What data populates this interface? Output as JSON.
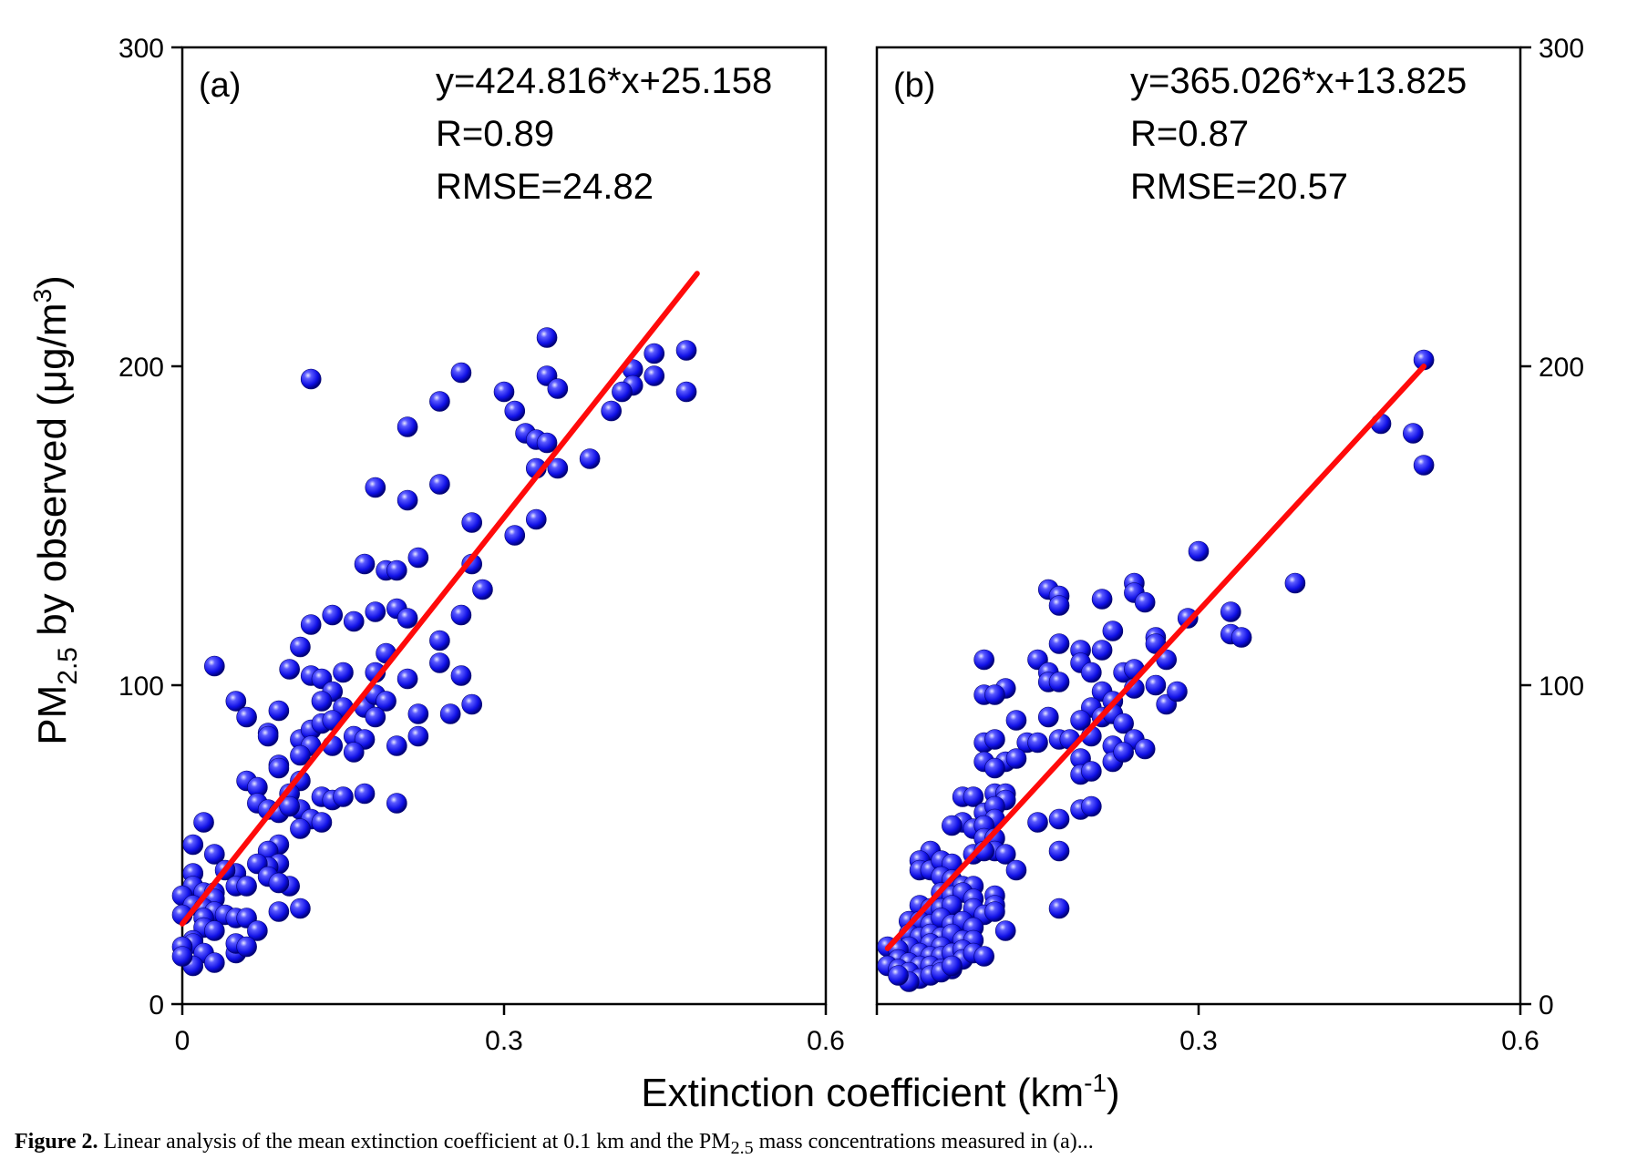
{
  "figure": {
    "ylabel_main": "PM",
    "ylabel_sub": "2.5",
    "ylabel_rest": " by observed (μg/m",
    "ylabel_sup": "3",
    "ylabel_end": ")",
    "xlabel_main": "Extinction coefficient (km",
    "xlabel_sup": "-1",
    "xlabel_end": ")",
    "caption_bold": "Figure 2.",
    "caption_text": " Linear analysis of the mean extinction coefficient at 0.1 km and the PM",
    "caption_sub": "2.5",
    "caption_rest": " mass concentrations measured in (a)..."
  },
  "chart_data": [
    {
      "type": "scatter",
      "panel_label": "(a)",
      "equation": "y=424.816*x+25.158",
      "r_text": "R=0.89",
      "rmse_text": "RMSE=24.82",
      "xlim": [
        0,
        0.6
      ],
      "ylim": [
        0,
        300
      ],
      "xticks": [
        0,
        0.3,
        0.6
      ],
      "xtick_labels": [
        "0",
        "0.3",
        "0.6"
      ],
      "yticks": [
        0,
        100,
        200,
        300
      ],
      "ytick_labels": [
        "0",
        "100",
        "200",
        "300"
      ],
      "y_axis_side": "left",
      "marker_color": "#1a1aff",
      "fit": {
        "slope": 424.816,
        "intercept": 25.158,
        "x_range": [
          0,
          0.48
        ],
        "color": "#ff0a0a"
      },
      "points": [
        [
          0.12,
          196
        ],
        [
          0.34,
          209
        ],
        [
          0.26,
          198
        ],
        [
          0.24,
          189
        ],
        [
          0.3,
          192
        ],
        [
          0.34,
          197
        ],
        [
          0.35,
          193
        ],
        [
          0.31,
          186
        ],
        [
          0.47,
          205
        ],
        [
          0.44,
          204
        ],
        [
          0.42,
          199
        ],
        [
          0.42,
          194
        ],
        [
          0.41,
          192
        ],
        [
          0.44,
          197
        ],
        [
          0.47,
          192
        ],
        [
          0.4,
          186
        ],
        [
          0.32,
          179
        ],
        [
          0.33,
          177
        ],
        [
          0.34,
          176
        ],
        [
          0.33,
          168
        ],
        [
          0.35,
          168
        ],
        [
          0.38,
          171
        ],
        [
          0.21,
          181
        ],
        [
          0.18,
          162
        ],
        [
          0.24,
          163
        ],
        [
          0.21,
          158
        ],
        [
          0.27,
          151
        ],
        [
          0.33,
          152
        ],
        [
          0.31,
          147
        ],
        [
          0.22,
          140
        ],
        [
          0.17,
          138
        ],
        [
          0.19,
          136
        ],
        [
          0.2,
          136
        ],
        [
          0.27,
          138
        ],
        [
          0.28,
          130
        ],
        [
          0.14,
          122
        ],
        [
          0.16,
          120
        ],
        [
          0.18,
          123
        ],
        [
          0.2,
          124
        ],
        [
          0.21,
          121
        ],
        [
          0.26,
          122
        ],
        [
          0.12,
          119
        ],
        [
          0.11,
          112
        ],
        [
          0.19,
          110
        ],
        [
          0.24,
          114
        ],
        [
          0.03,
          106
        ],
        [
          0.1,
          105
        ],
        [
          0.12,
          103
        ],
        [
          0.13,
          102
        ],
        [
          0.15,
          104
        ],
        [
          0.14,
          98
        ],
        [
          0.18,
          104
        ],
        [
          0.24,
          107
        ],
        [
          0.26,
          103
        ],
        [
          0.21,
          102
        ],
        [
          0.05,
          95
        ],
        [
          0.06,
          90
        ],
        [
          0.09,
          92
        ],
        [
          0.13,
          95
        ],
        [
          0.15,
          93
        ],
        [
          0.17,
          93
        ],
        [
          0.18,
          97
        ],
        [
          0.19,
          95
        ],
        [
          0.18,
          90
        ],
        [
          0.22,
          91
        ],
        [
          0.25,
          91
        ],
        [
          0.27,
          94
        ],
        [
          0.08,
          85
        ],
        [
          0.11,
          83
        ],
        [
          0.12,
          86
        ],
        [
          0.13,
          88
        ],
        [
          0.14,
          89
        ],
        [
          0.16,
          84
        ],
        [
          0.17,
          83
        ],
        [
          0.2,
          81
        ],
        [
          0.22,
          84
        ],
        [
          0.08,
          84
        ],
        [
          0.12,
          81
        ],
        [
          0.14,
          81
        ],
        [
          0.16,
          79
        ],
        [
          0.11,
          78
        ],
        [
          0.09,
          75
        ],
        [
          0.09,
          74
        ],
        [
          0.06,
          70
        ],
        [
          0.07,
          68
        ],
        [
          0.11,
          70
        ],
        [
          0.1,
          66
        ],
        [
          0.13,
          65
        ],
        [
          0.14,
          64
        ],
        [
          0.15,
          65
        ],
        [
          0.17,
          66
        ],
        [
          0.2,
          63
        ],
        [
          0.07,
          63
        ],
        [
          0.08,
          61
        ],
        [
          0.09,
          60
        ],
        [
          0.11,
          61
        ],
        [
          0.12,
          58
        ],
        [
          0.13,
          57
        ],
        [
          0.11,
          55
        ],
        [
          0.1,
          62
        ],
        [
          0.02,
          57
        ],
        [
          0.01,
          50
        ],
        [
          0.03,
          47
        ],
        [
          0.09,
          50
        ],
        [
          0.08,
          48
        ],
        [
          0.09,
          44
        ],
        [
          0.08,
          43
        ],
        [
          0.07,
          44
        ],
        [
          0.08,
          40
        ],
        [
          0.1,
          37
        ],
        [
          0.09,
          38
        ],
        [
          0.05,
          41
        ],
        [
          0.04,
          42
        ],
        [
          0.05,
          37
        ],
        [
          0.06,
          37
        ],
        [
          0.01,
          41
        ],
        [
          0.01,
          37
        ],
        [
          0.02,
          35
        ],
        [
          0.0,
          34
        ],
        [
          0.03,
          35
        ],
        [
          0.03,
          33
        ],
        [
          0.01,
          31
        ],
        [
          0.02,
          30
        ],
        [
          0.0,
          28
        ],
        [
          0.03,
          29
        ],
        [
          0.02,
          27
        ],
        [
          0.04,
          28
        ],
        [
          0.05,
          27
        ],
        [
          0.06,
          27
        ],
        [
          0.07,
          23
        ],
        [
          0.09,
          29
        ],
        [
          0.11,
          30
        ],
        [
          0.02,
          24
        ],
        [
          0.03,
          23
        ],
        [
          0.01,
          20
        ],
        [
          0.01,
          19
        ],
        [
          0.0,
          18
        ],
        [
          0.02,
          16
        ],
        [
          0.05,
          16
        ],
        [
          0.05,
          19
        ],
        [
          0.06,
          18
        ],
        [
          0.03,
          13
        ],
        [
          0.01,
          12
        ],
        [
          0.0,
          15
        ]
      ]
    },
    {
      "type": "scatter",
      "panel_label": "(b)",
      "equation": "y=365.026*x+13.825",
      "r_text": "R=0.87",
      "rmse_text": "RMSE=20.57",
      "xlim": [
        0,
        0.6
      ],
      "ylim": [
        0,
        300
      ],
      "xticks": [
        0,
        0.3,
        0.6
      ],
      "xtick_labels": [
        "",
        "0.3",
        "0.6"
      ],
      "yticks": [
        0,
        100,
        200,
        300
      ],
      "ytick_labels": [
        "0",
        "100",
        "200",
        "300"
      ],
      "y_axis_side": "right",
      "marker_color": "#1a1aff",
      "fit": {
        "slope": 365.026,
        "intercept": 13.825,
        "x_range": [
          0.01,
          0.51
        ],
        "color": "#ff0a0a"
      },
      "points": [
        [
          0.51,
          202
        ],
        [
          0.47,
          182
        ],
        [
          0.5,
          179
        ],
        [
          0.51,
          169
        ],
        [
          0.3,
          142
        ],
        [
          0.39,
          132
        ],
        [
          0.29,
          121
        ],
        [
          0.33,
          123
        ],
        [
          0.33,
          116
        ],
        [
          0.34,
          115
        ],
        [
          0.16,
          130
        ],
        [
          0.17,
          128
        ],
        [
          0.17,
          125
        ],
        [
          0.21,
          127
        ],
        [
          0.24,
          132
        ],
        [
          0.24,
          129
        ],
        [
          0.25,
          126
        ],
        [
          0.26,
          115
        ],
        [
          0.22,
          117
        ],
        [
          0.26,
          113
        ],
        [
          0.17,
          113
        ],
        [
          0.19,
          111
        ],
        [
          0.21,
          111
        ],
        [
          0.15,
          108
        ],
        [
          0.1,
          108
        ],
        [
          0.19,
          107
        ],
        [
          0.27,
          108
        ],
        [
          0.2,
          104
        ],
        [
          0.23,
          104
        ],
        [
          0.24,
          105
        ],
        [
          0.16,
          104
        ],
        [
          0.16,
          101
        ],
        [
          0.17,
          101
        ],
        [
          0.12,
          99
        ],
        [
          0.1,
          97
        ],
        [
          0.11,
          97
        ],
        [
          0.21,
          98
        ],
        [
          0.24,
          99
        ],
        [
          0.26,
          100
        ],
        [
          0.27,
          94
        ],
        [
          0.28,
          98
        ],
        [
          0.22,
          95
        ],
        [
          0.2,
          93
        ],
        [
          0.21,
          90
        ],
        [
          0.13,
          89
        ],
        [
          0.16,
          90
        ],
        [
          0.19,
          89
        ],
        [
          0.22,
          91
        ],
        [
          0.23,
          88
        ],
        [
          0.1,
          82
        ],
        [
          0.11,
          83
        ],
        [
          0.14,
          82
        ],
        [
          0.15,
          82
        ],
        [
          0.17,
          83
        ],
        [
          0.18,
          83
        ],
        [
          0.2,
          84
        ],
        [
          0.22,
          81
        ],
        [
          0.24,
          83
        ],
        [
          0.25,
          80
        ],
        [
          0.19,
          77
        ],
        [
          0.22,
          76
        ],
        [
          0.23,
          79
        ],
        [
          0.12,
          76
        ],
        [
          0.13,
          77
        ],
        [
          0.1,
          76
        ],
        [
          0.11,
          74
        ],
        [
          0.19,
          72
        ],
        [
          0.2,
          73
        ],
        [
          0.11,
          66
        ],
        [
          0.12,
          66
        ],
        [
          0.08,
          65
        ],
        [
          0.09,
          65
        ],
        [
          0.12,
          64
        ],
        [
          0.1,
          60
        ],
        [
          0.11,
          62
        ],
        [
          0.11,
          58
        ],
        [
          0.15,
          57
        ],
        [
          0.17,
          58
        ],
        [
          0.19,
          61
        ],
        [
          0.2,
          62
        ],
        [
          0.08,
          57
        ],
        [
          0.07,
          56
        ],
        [
          0.09,
          55
        ],
        [
          0.1,
          56
        ],
        [
          0.1,
          52
        ],
        [
          0.11,
          52
        ],
        [
          0.11,
          48
        ],
        [
          0.12,
          47
        ],
        [
          0.05,
          48
        ],
        [
          0.04,
          45
        ],
        [
          0.04,
          42
        ],
        [
          0.05,
          42
        ],
        [
          0.06,
          45
        ],
        [
          0.07,
          44
        ],
        [
          0.09,
          47
        ],
        [
          0.1,
          48
        ],
        [
          0.13,
          42
        ],
        [
          0.17,
          48
        ],
        [
          0.06,
          40
        ],
        [
          0.07,
          39
        ],
        [
          0.08,
          37
        ],
        [
          0.09,
          37
        ],
        [
          0.06,
          35
        ],
        [
          0.07,
          34
        ],
        [
          0.08,
          35
        ],
        [
          0.09,
          33
        ],
        [
          0.11,
          34
        ],
        [
          0.11,
          31
        ],
        [
          0.04,
          31
        ],
        [
          0.05,
          30
        ],
        [
          0.06,
          30
        ],
        [
          0.07,
          31
        ],
        [
          0.09,
          30
        ],
        [
          0.1,
          28
        ],
        [
          0.11,
          29
        ],
        [
          0.12,
          23
        ],
        [
          0.03,
          26
        ],
        [
          0.04,
          26
        ],
        [
          0.05,
          25
        ],
        [
          0.06,
          27
        ],
        [
          0.07,
          25
        ],
        [
          0.08,
          26
        ],
        [
          0.09,
          24
        ],
        [
          0.17,
          30
        ],
        [
          0.03,
          22
        ],
        [
          0.04,
          21
        ],
        [
          0.05,
          22
        ],
        [
          0.06,
          21
        ],
        [
          0.07,
          22
        ],
        [
          0.08,
          20
        ],
        [
          0.09,
          20
        ],
        [
          0.05,
          19
        ],
        [
          0.06,
          18
        ],
        [
          0.03,
          18
        ],
        [
          0.01,
          18
        ],
        [
          0.02,
          17
        ],
        [
          0.04,
          16
        ],
        [
          0.05,
          15
        ],
        [
          0.06,
          15
        ],
        [
          0.07,
          16
        ],
        [
          0.08,
          17
        ],
        [
          0.02,
          14
        ],
        [
          0.03,
          13
        ],
        [
          0.04,
          12
        ],
        [
          0.05,
          12
        ],
        [
          0.06,
          11
        ],
        [
          0.07,
          11
        ],
        [
          0.08,
          14
        ],
        [
          0.09,
          16
        ],
        [
          0.1,
          15
        ],
        [
          0.01,
          12
        ],
        [
          0.02,
          11
        ],
        [
          0.03,
          10
        ],
        [
          0.04,
          8
        ],
        [
          0.05,
          9
        ],
        [
          0.06,
          10
        ],
        [
          0.07,
          12
        ],
        [
          0.03,
          7
        ],
        [
          0.02,
          9
        ]
      ]
    }
  ]
}
